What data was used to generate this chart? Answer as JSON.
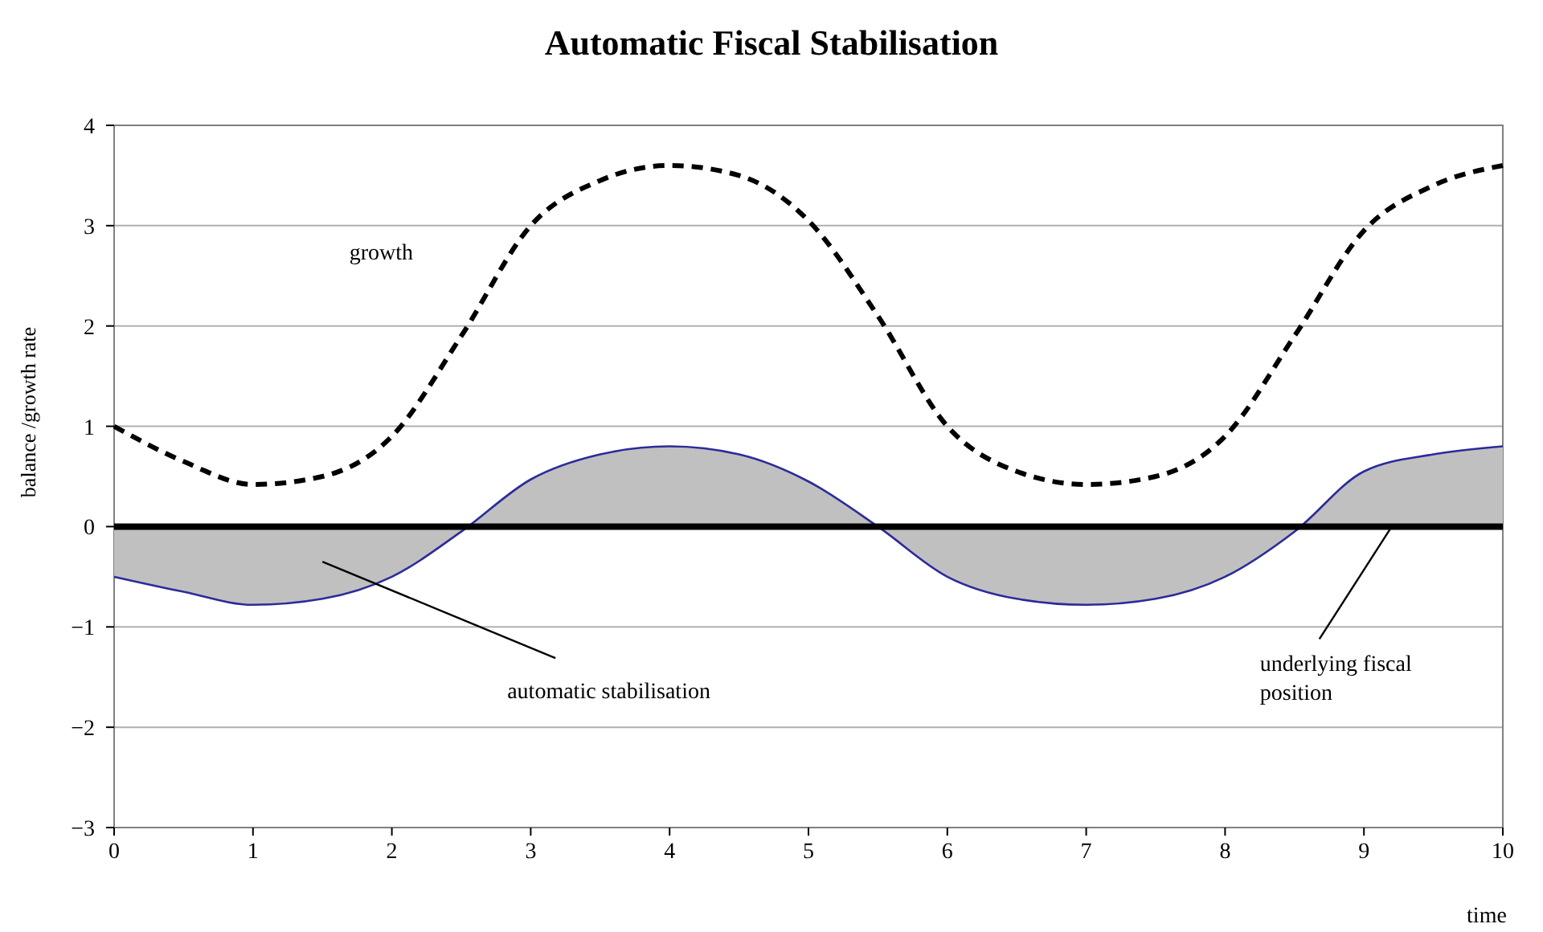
{
  "chart_data": {
    "type": "line",
    "title": "Automatic Fiscal Stabilisation",
    "xlabel": "time",
    "ylabel": "balance /growth rate",
    "x": [
      0,
      0.5,
      1,
      1.5,
      2,
      2.5,
      3,
      3.5,
      4,
      4.5,
      5,
      5.5,
      6,
      6.5,
      7,
      7.5,
      8,
      8.5,
      9,
      9.5,
      10
    ],
    "series": [
      {
        "name": "growth",
        "line_style": "dashed",
        "color": "#000000",
        "values": [
          1.0,
          0.65,
          0.42,
          0.5,
          0.9,
          1.9,
          3.0,
          3.45,
          3.6,
          3.5,
          3.05,
          2.1,
          1.0,
          0.55,
          0.42,
          0.5,
          0.9,
          1.9,
          2.95,
          3.4,
          3.6
        ]
      },
      {
        "type": "area",
        "line_style": "solid",
        "color": "#2b2b9b",
        "values": [
          -0.5,
          -0.65,
          -0.78,
          -0.72,
          -0.5,
          -0.05,
          0.47,
          0.72,
          0.8,
          0.72,
          0.45,
          0.0,
          -0.5,
          -0.72,
          -0.78,
          -0.72,
          -0.5,
          -0.05,
          0.55,
          0.72,
          0.8
        ]
      }
    ],
    "xlim": [
      0,
      10
    ],
    "xticks": [
      0,
      1,
      2,
      3,
      4,
      5,
      6,
      7,
      8,
      9,
      10
    ],
    "ylim": [
      -3,
      4
    ],
    "yticks": [
      {
        "value": -3,
        "label": "−3"
      },
      {
        "value": -2,
        "label": "−2"
      },
      {
        "value": -1,
        "label": "−1"
      },
      0,
      1,
      2,
      3,
      4
    ],
    "grid": "y",
    "legend": false,
    "marker": "none",
    "ref_lines": [
      {
        "axis": "y",
        "value": 0,
        "color": "#000000"
      }
    ],
    "annotations": [
      "automatic stabilisation",
      {
        "text": "underlying fiscal position",
        "x": 9.2,
        "y": 0
      }
    ]
  }
}
